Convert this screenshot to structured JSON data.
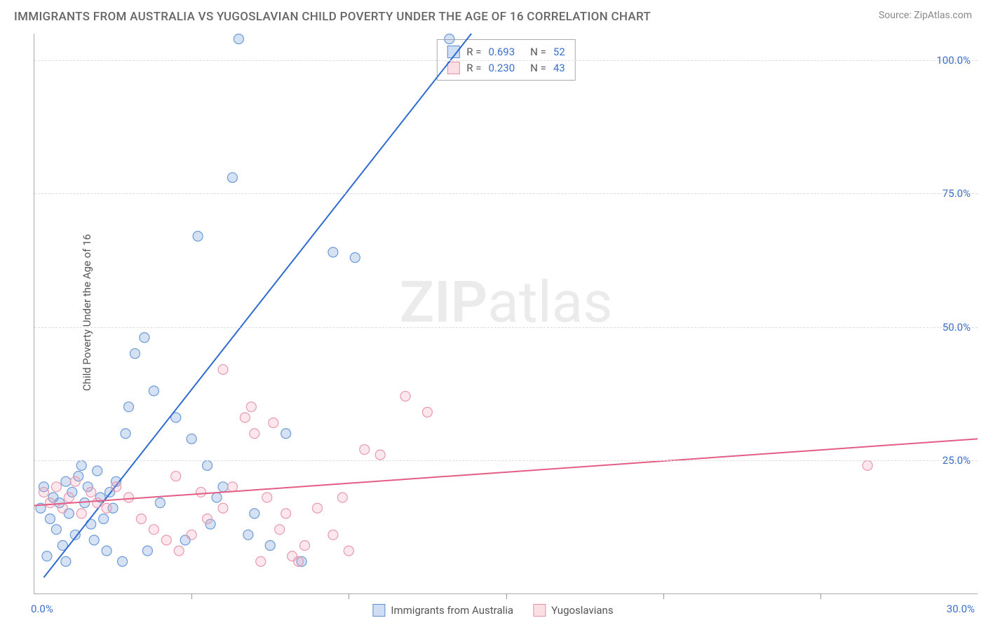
{
  "title": "IMMIGRANTS FROM AUSTRALIA VS YUGOSLAVIAN CHILD POVERTY UNDER THE AGE OF 16 CORRELATION CHART",
  "source_label": "Source:",
  "source_name": "ZipAtlas.com",
  "y_axis_label": "Child Poverty Under the Age of 16",
  "watermark_a": "ZIP",
  "watermark_b": "atlas",
  "chart": {
    "type": "scatter",
    "xlim": [
      0,
      30
    ],
    "ylim": [
      0,
      105
    ],
    "x_ticks": [
      0,
      30
    ],
    "x_tick_labels": [
      "0.0%",
      "30.0%"
    ],
    "x_major_positions": [
      5,
      10,
      15,
      20,
      25
    ],
    "y_ticks": [
      25,
      50,
      75,
      100
    ],
    "y_tick_labels": [
      "25.0%",
      "50.0%",
      "75.0%",
      "100.0%"
    ],
    "grid_color": "#dddddd",
    "background_color": "#ffffff",
    "marker_radius": 7,
    "series": [
      {
        "name": "Immigrants from Australia",
        "color_fill": "rgba(120,160,220,0.30)",
        "color_stroke": "#6a9bd8",
        "trend_color": "#2f6bd0",
        "R": "0.693",
        "N": "52",
        "trend": {
          "x1": 0.3,
          "y1": 3,
          "x2": 13.9,
          "y2": 105
        },
        "points": [
          [
            0.2,
            16
          ],
          [
            0.3,
            20
          ],
          [
            0.5,
            14
          ],
          [
            0.6,
            18
          ],
          [
            0.7,
            12
          ],
          [
            0.8,
            17
          ],
          [
            0.9,
            9
          ],
          [
            1.0,
            21
          ],
          [
            1.1,
            15
          ],
          [
            1.2,
            19
          ],
          [
            1.3,
            11
          ],
          [
            1.4,
            22
          ],
          [
            1.5,
            24
          ],
          [
            1.6,
            17
          ],
          [
            1.7,
            20
          ],
          [
            1.8,
            13
          ],
          [
            1.9,
            10
          ],
          [
            2.0,
            23
          ],
          [
            2.1,
            18
          ],
          [
            2.2,
            14
          ],
          [
            2.3,
            8
          ],
          [
            2.4,
            19
          ],
          [
            2.5,
            16
          ],
          [
            2.6,
            21
          ],
          [
            3.0,
            35
          ],
          [
            3.2,
            45
          ],
          [
            3.5,
            48
          ],
          [
            3.8,
            38
          ],
          [
            2.9,
            30
          ],
          [
            4.5,
            33
          ],
          [
            5.0,
            29
          ],
          [
            5.5,
            24
          ],
          [
            6.0,
            20
          ],
          [
            6.3,
            78
          ],
          [
            6.5,
            104
          ],
          [
            7.0,
            15
          ],
          [
            5.2,
            67
          ],
          [
            4.8,
            10
          ],
          [
            3.6,
            8
          ],
          [
            4.0,
            17
          ],
          [
            5.6,
            13
          ],
          [
            5.8,
            18
          ],
          [
            6.8,
            11
          ],
          [
            2.8,
            6
          ],
          [
            0.4,
            7
          ],
          [
            1.0,
            6
          ],
          [
            9.5,
            64
          ],
          [
            8.0,
            30
          ],
          [
            7.5,
            9
          ],
          [
            8.5,
            6
          ],
          [
            10.2,
            63
          ],
          [
            13.2,
            104
          ]
        ]
      },
      {
        "name": "Yugoslavians",
        "color_fill": "rgba(240,160,180,0.25)",
        "color_stroke": "#e79ab0",
        "trend_color": "#e35d84",
        "R": "0.230",
        "N": "43",
        "trend": {
          "x1": 0,
          "y1": 16.5,
          "x2": 30,
          "y2": 29
        },
        "points": [
          [
            0.3,
            19
          ],
          [
            0.5,
            17
          ],
          [
            0.7,
            20
          ],
          [
            0.9,
            16
          ],
          [
            1.1,
            18
          ],
          [
            1.3,
            21
          ],
          [
            1.5,
            15
          ],
          [
            1.8,
            19
          ],
          [
            2.0,
            17
          ],
          [
            2.3,
            16
          ],
          [
            2.6,
            20
          ],
          [
            3.0,
            18
          ],
          [
            3.4,
            14
          ],
          [
            3.8,
            12
          ],
          [
            4.2,
            10
          ],
          [
            4.6,
            8
          ],
          [
            5.0,
            11
          ],
          [
            5.5,
            14
          ],
          [
            6.0,
            42
          ],
          [
            6.3,
            20
          ],
          [
            6.7,
            33
          ],
          [
            7.0,
            30
          ],
          [
            7.4,
            18
          ],
          [
            7.8,
            12
          ],
          [
            8.2,
            7
          ],
          [
            8.6,
            9
          ],
          [
            9.0,
            16
          ],
          [
            9.5,
            11
          ],
          [
            10.0,
            8
          ],
          [
            10.5,
            27
          ],
          [
            6.9,
            35
          ],
          [
            7.6,
            32
          ],
          [
            8.0,
            15
          ],
          [
            11.8,
            37
          ],
          [
            12.5,
            34
          ],
          [
            11.0,
            26
          ],
          [
            4.5,
            22
          ],
          [
            6.0,
            16
          ],
          [
            5.3,
            19
          ],
          [
            7.2,
            6
          ],
          [
            8.4,
            6
          ],
          [
            9.8,
            18
          ],
          [
            26.5,
            24
          ]
        ]
      }
    ],
    "legend_bottom": [
      {
        "swatch": "blue",
        "label": "Immigrants from Australia"
      },
      {
        "swatch": "pink",
        "label": "Yugoslavians"
      }
    ]
  }
}
